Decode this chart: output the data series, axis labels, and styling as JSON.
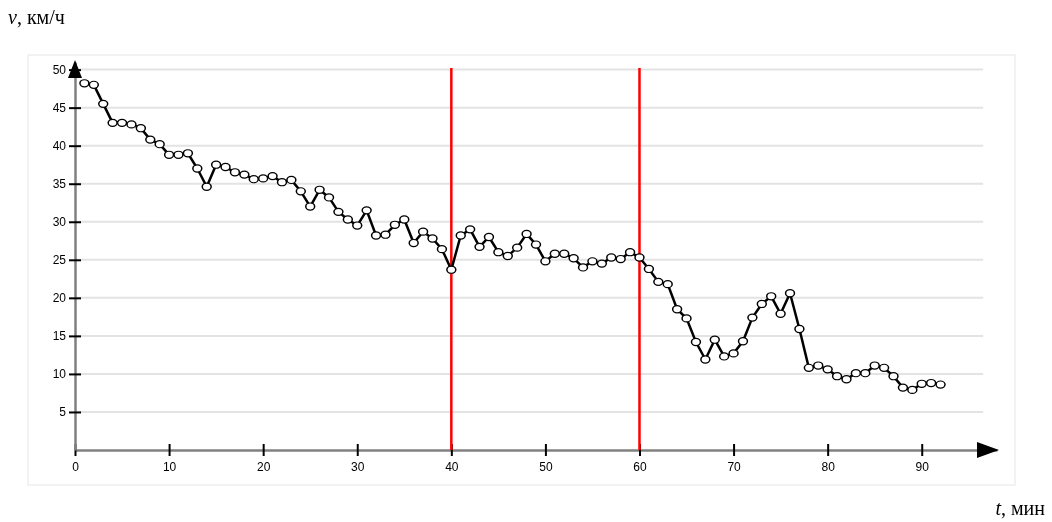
{
  "chart_data": {
    "type": "line",
    "xlabel": "t, мин",
    "ylabel": "v, км/ч",
    "x": [
      1,
      2,
      3,
      4,
      5,
      6,
      7,
      8,
      9,
      10,
      11,
      12,
      13,
      14,
      15,
      16,
      17,
      18,
      19,
      20,
      21,
      22,
      23,
      24,
      25,
      26,
      27,
      28,
      29,
      30,
      31,
      32,
      33,
      34,
      35,
      36,
      37,
      38,
      39,
      40,
      41,
      42,
      43,
      44,
      45,
      46,
      47,
      48,
      49,
      50,
      51,
      52,
      53,
      54,
      55,
      56,
      57,
      58,
      59,
      60,
      61,
      62,
      63,
      64,
      65,
      66,
      67,
      68,
      69,
      70,
      71,
      72,
      73,
      74,
      75,
      76,
      77,
      78,
      79,
      80,
      81,
      82,
      83,
      84,
      85,
      86,
      87,
      88,
      89,
      90,
      91,
      92
    ],
    "series": [
      {
        "color": "#000000",
        "values": [
          48.2,
          48,
          45.5,
          43,
          43,
          42.8,
          42.3,
          40.8,
          40.2,
          38.8,
          38.8,
          39,
          37,
          34.6,
          37.5,
          37.2,
          36.5,
          36.2,
          35.6,
          35.7,
          36,
          35.2,
          35.5,
          34,
          32,
          34.2,
          33.2,
          31.3,
          30.3,
          29.5,
          31.5,
          28.2,
          28.3,
          29.6,
          30.3,
          27.2,
          28.7,
          27.8,
          26.4,
          23.7,
          28.2,
          29,
          26.7,
          28,
          26,
          25.5,
          26.6,
          28.4,
          27,
          24.8,
          25.8,
          25.8,
          25.2,
          24,
          24.8,
          24.5,
          25.3,
          25.1,
          26,
          25.3,
          23.8,
          22.1,
          21.8,
          18.5,
          17.3,
          14.2,
          11.9,
          14.5,
          12.3,
          12.7,
          14.3,
          17.4,
          19.2,
          20.2,
          17.9,
          20.6,
          15.9,
          10.8,
          11.1,
          10.6,
          9.7,
          9.3,
          10.1,
          10.1,
          11.1,
          10.8,
          9.7,
          8.2,
          7.9,
          8.7,
          8.8,
          8.6
        ]
      }
    ],
    "xlim": [
      0,
      98
    ],
    "ylim": [
      0,
      51
    ],
    "xticks": [
      0,
      10,
      20,
      30,
      40,
      50,
      60,
      70,
      80,
      90
    ],
    "yticks": [
      5,
      10,
      15,
      20,
      25,
      30,
      35,
      40,
      45,
      50
    ],
    "grid": "y",
    "marker": "circle",
    "line_style": "solid",
    "ref_lines": [
      {
        "axis": "x",
        "value": 40,
        "color": "#ff0000"
      },
      {
        "axis": "x",
        "value": 60,
        "color": "#ff0000"
      }
    ]
  }
}
